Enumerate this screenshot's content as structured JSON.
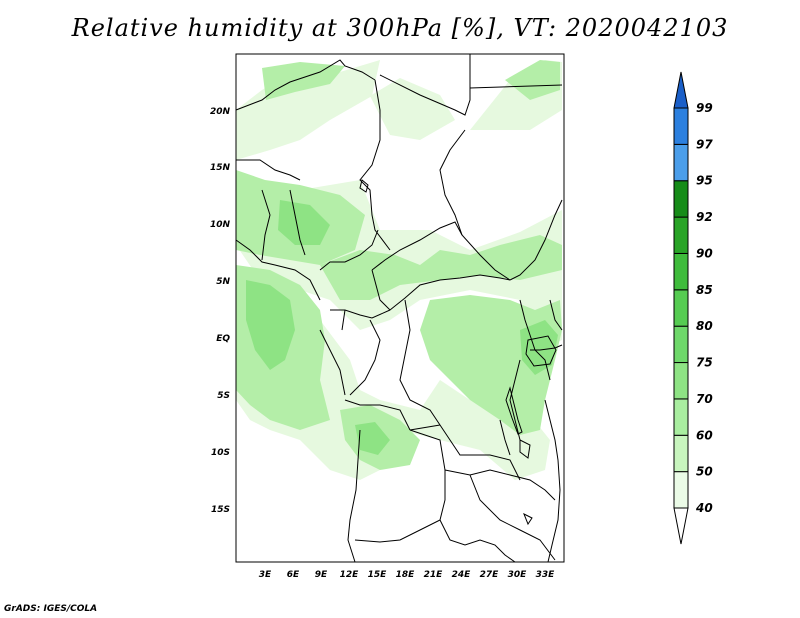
{
  "title": "Relative humidity at 300hPa [%], VT: 2020042103",
  "credit": "GrADS: IGES/COLA",
  "lat_labels": [
    "20N",
    "15N",
    "10N",
    "5N",
    "EQ",
    "5S",
    "10S",
    "15S"
  ],
  "lon_labels": [
    "3E",
    "6E",
    "9E",
    "12E",
    "15E",
    "18E",
    "21E",
    "24E",
    "27E",
    "30E",
    "33E"
  ],
  "colorbar": {
    "levels": [
      "40",
      "50",
      "60",
      "70",
      "75",
      "80",
      "85",
      "90",
      "92",
      "95",
      "97",
      "99"
    ],
    "colors": [
      "#ebfbe7",
      "#c8f5be",
      "#a9eea0",
      "#8ee384",
      "#6ed86a",
      "#56cc52",
      "#3fbc3c",
      "#29a427",
      "#168c18",
      "#4b9eea",
      "#2c80df",
      "#1a5fc8"
    ]
  },
  "humidity_fill": {
    "light": "#e6f9df",
    "medium": "#b4eea8",
    "strong": "#8ee384"
  }
}
